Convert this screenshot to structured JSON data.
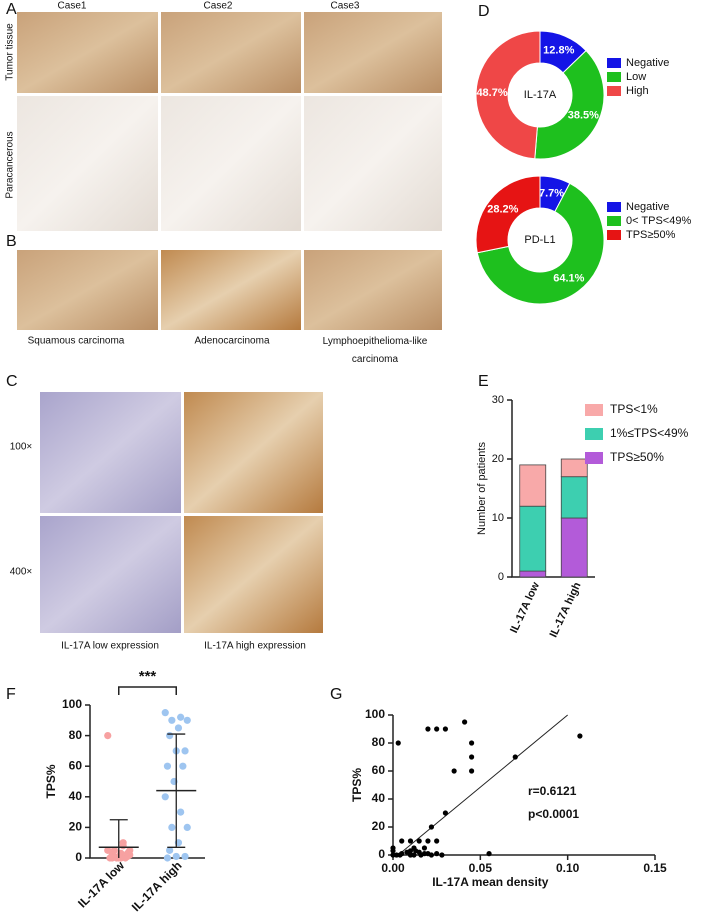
{
  "panel_labels": [
    "A",
    "B",
    "C",
    "D",
    "E",
    "F",
    "G"
  ],
  "panel_a": {
    "columns": [
      "Case1",
      "Case2",
      "Case3"
    ],
    "rows": [
      "Tumor tissue",
      "Paracancerous"
    ]
  },
  "panel_b": {
    "captions": [
      "Squamous carcinoma",
      "Adenocarcinoma",
      "Lymphoepithelioma-like carcinoma"
    ]
  },
  "panel_c": {
    "rows": [
      "100×",
      "400×"
    ],
    "captions": [
      "IL-17A low  expression",
      "IL-17A high  expression"
    ]
  },
  "chart_data": [
    {
      "type": "pie",
      "center_label": "IL-17A",
      "categories": [
        "Negative",
        "Low",
        "High"
      ],
      "values": [
        12.8,
        38.5,
        48.7
      ],
      "value_labels": [
        "12.8%",
        "38.5%",
        "48.7%"
      ],
      "colors": [
        "#1414e6",
        "#1ec01e",
        "#ef4747"
      ]
    },
    {
      "type": "pie",
      "center_label": "PD-L1",
      "categories": [
        "Negative",
        "0< TPS<49%",
        "TPS≥50%"
      ],
      "values": [
        7.7,
        64.1,
        28.2
      ],
      "value_labels": [
        "7.7%",
        "64.1%",
        "28.2%"
      ],
      "colors": [
        "#1414e6",
        "#1ec01e",
        "#e61414"
      ]
    },
    {
      "type": "stacked_bar",
      "ylabel": "Number of patients",
      "categories": [
        "IL-17A low",
        "IL-17A high"
      ],
      "series": [
        {
          "name": "TPS≥50%",
          "color": "#b35bd9",
          "values": [
            1,
            10
          ]
        },
        {
          "name": "1%≤TPS<49%",
          "color": "#3dcfb0",
          "values": [
            11,
            7
          ]
        },
        {
          "name": "TPS<1%",
          "color": "#f8a9a9",
          "values": [
            7,
            3
          ]
        }
      ],
      "ylim": [
        0,
        30
      ],
      "yticks": [
        0,
        10,
        20,
        30
      ]
    },
    {
      "type": "dot_plot",
      "ylabel": "TPS%",
      "annotation": "***",
      "categories": [
        "IL-17A low",
        "IL-17A high"
      ],
      "groups": [
        {
          "color": "#f7a1a1",
          "values": [
            80,
            10,
            5,
            5,
            3,
            2,
            1,
            0,
            0,
            0,
            0,
            5,
            8,
            1,
            2,
            0,
            0,
            3,
            1
          ],
          "mean": 7,
          "sd": 18
        },
        {
          "color": "#9ec5f0",
          "values": [
            95,
            92,
            90,
            90,
            85,
            80,
            70,
            70,
            60,
            60,
            50,
            40,
            30,
            20,
            20,
            10,
            5,
            1,
            1,
            0
          ],
          "mean": 44,
          "sd": 37
        }
      ],
      "ylim": [
        0,
        100
      ],
      "yticks": [
        0,
        20,
        40,
        60,
        80,
        100
      ]
    },
    {
      "type": "scatter",
      "xlabel": "IL-17A mean density",
      "ylabel": "TPS%",
      "annotations": [
        "r=0.6121",
        "p<0.0001"
      ],
      "x": [
        0.003,
        0.02,
        0.025,
        0.03,
        0.041,
        0.045,
        0.045,
        0.045,
        0.035,
        0.07,
        0.107,
        0.03,
        0.022,
        0.02,
        0.025,
        0.015,
        0.01,
        0.005,
        0.0,
        0.0,
        0.0,
        0.002,
        0.005,
        0.008,
        0.01,
        0.012,
        0.013,
        0.015,
        0.016,
        0.018,
        0.02,
        0.022,
        0.025,
        0.028,
        0.055,
        0.01,
        0.004,
        0.012,
        0.018
      ],
      "y": [
        80,
        90,
        90,
        90,
        95,
        80,
        70,
        60,
        60,
        70,
        85,
        30,
        20,
        10,
        10,
        10,
        10,
        10,
        5,
        3,
        0,
        0,
        1,
        2,
        3,
        5,
        3,
        2,
        0,
        1,
        1,
        0,
        1,
        0,
        1,
        0,
        0,
        0,
        5
      ],
      "fit_line": {
        "x": [
          0.003,
          0.1
        ],
        "y": [
          0,
          100
        ]
      },
      "xlim": [
        0,
        0.15
      ],
      "xticks": [
        {
          "value": 0,
          "label": "0.00"
        },
        {
          "value": 0.05,
          "label": "0.05"
        },
        {
          "value": 0.1,
          "label": "0.10"
        },
        {
          "value": 0.15,
          "label": "0.15"
        }
      ],
      "ylim": [
        0,
        100
      ],
      "yticks": [
        0,
        20,
        40,
        60,
        80,
        100
      ]
    }
  ]
}
